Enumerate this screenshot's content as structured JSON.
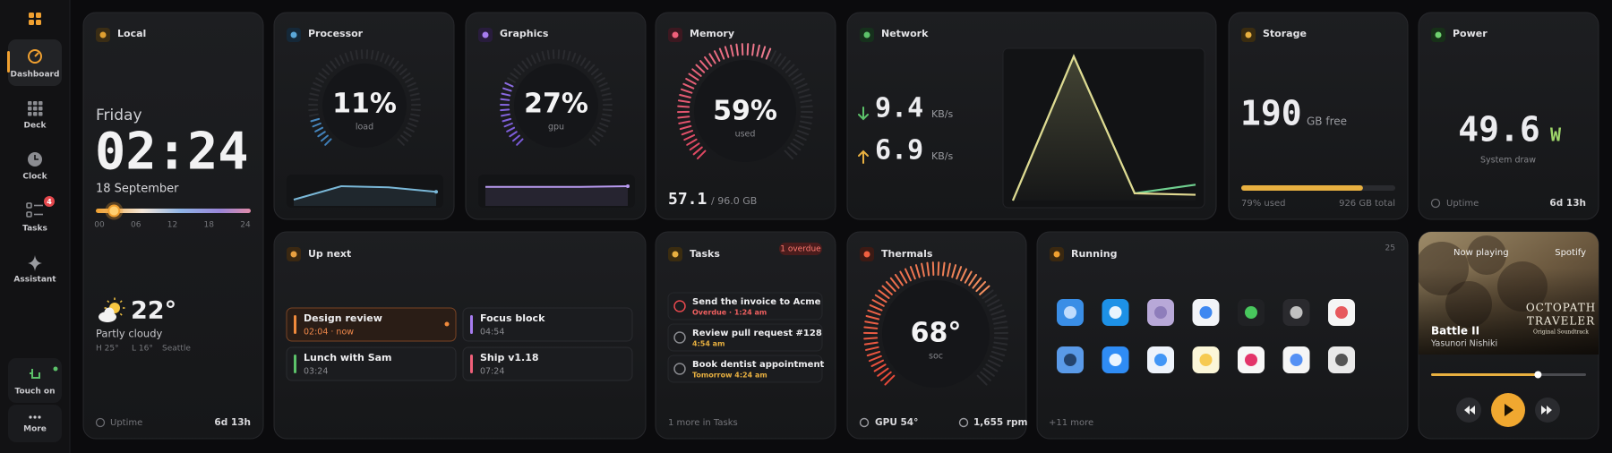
{
  "sidebar": {
    "items": [
      {
        "label": "Dashboard"
      },
      {
        "label": "Deck"
      },
      {
        "label": "Clock"
      },
      {
        "label": "Tasks",
        "badge": 4
      },
      {
        "label": "Assistant"
      }
    ],
    "touch": "Touch on",
    "more": "More"
  },
  "local": {
    "title": "Local",
    "day": "Friday",
    "time": "02:24",
    "date": "18 September",
    "timeline": {
      "ticks": [
        {
          "value": 0,
          "label": "00"
        },
        {
          "value": 6,
          "label": "06"
        },
        12,
        18,
        24
      ],
      "now": 2.4
    },
    "weather": {
      "temp": "22°",
      "condition": "Partly cloudy",
      "high": "H 25°",
      "low": "L 16°",
      "city": "Seattle"
    },
    "uptime": {
      "label": "Uptime",
      "value": "6d 13h"
    }
  },
  "processor": {
    "title": "Processor",
    "load": {
      "value": 11,
      "label": "11%"
    },
    "caption": "load",
    "history": [
      4,
      16,
      15,
      11
    ]
  },
  "graphics": {
    "title": "Graphics",
    "load": {
      "value": 27,
      "label": "27%"
    },
    "caption": "gpu",
    "history": [
      26,
      26,
      26,
      27
    ]
  },
  "memory": {
    "title": "Memory",
    "used": {
      "value": 59,
      "label": "59%"
    },
    "caption": "used",
    "used_gb": 57.1,
    "total": "/ 96.0 GB"
  },
  "network": {
    "title": "Network",
    "down": {
      "value": 9.4,
      "unit": "KB/s"
    },
    "up": {
      "value": 6.9,
      "unit": "KB/s"
    },
    "history": {
      "down": [
        0,
        100,
        5,
        11
      ],
      "up": [
        0,
        100,
        5,
        4
      ]
    }
  },
  "storage": {
    "title": "Storage",
    "free": 190,
    "free_unit": "GB free",
    "used": {
      "value": 79,
      "label": "79% used"
    },
    "total": "926 GB total"
  },
  "power": {
    "title": "Power",
    "draw": 49.6,
    "unit": "W",
    "caption": "System draw",
    "uptime": {
      "label": "Uptime",
      "value": "6d 13h"
    }
  },
  "up_next": {
    "title": "Up next",
    "events": [
      {
        "title": "Design review",
        "time": "02:04 · now"
      },
      {
        "title": "Focus block",
        "time": "04:54"
      },
      {
        "title": "Lunch with Sam",
        "time": "03:24"
      },
      {
        "title": "Ship v1.18",
        "time": "07:24"
      }
    ]
  },
  "tasks": {
    "title": "Tasks",
    "badge": "1 overdue",
    "items": [
      {
        "title": "Send the invoice to Acme",
        "due": "Overdue · 1:24 am"
      },
      {
        "title": "Review pull request #128",
        "due": "4:54 am"
      },
      {
        "title": "Book dentist appointment",
        "due": "Tomorrow 4:24 am"
      }
    ],
    "footer": "1 more in Tasks"
  },
  "thermals": {
    "title": "Thermals",
    "soc": {
      "value": 68,
      "label": "68°"
    },
    "caption": "soc",
    "gpu": "GPU 54°",
    "fan": "1,655 rpm"
  },
  "running": {
    "title": "Running",
    "count": 25,
    "more": "+11 more"
  },
  "now_playing": {
    "title": "Now playing",
    "source": "Spotify",
    "track": "Battle II",
    "artist": "Yasunori Nishiki",
    "art": [
      "OCTOPATH",
      "TRAVELER",
      "Original Soundtrack"
    ],
    "progress": 0.69
  }
}
